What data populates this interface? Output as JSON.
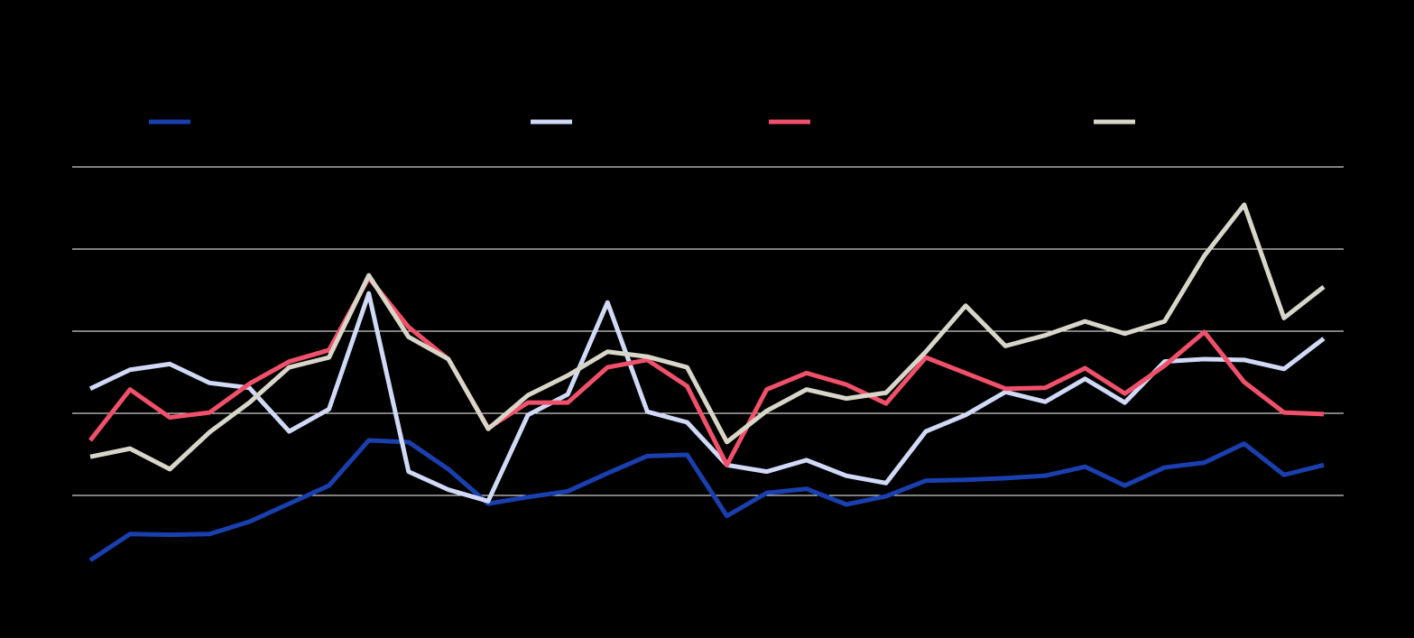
{
  "chart_data": {
    "type": "line",
    "categories": [
      null,
      null,
      null,
      null,
      null,
      null,
      null,
      null,
      null,
      null,
      null,
      null,
      null,
      null,
      null,
      null,
      null,
      null,
      null,
      null,
      null,
      null,
      null,
      null,
      null,
      null,
      null,
      null,
      null,
      null,
      null,
      null
    ],
    "ylim": [
      -1,
      4
    ],
    "yticks": [
      0,
      1,
      2,
      3,
      4
    ],
    "grid": true,
    "series": [
      {
        "color": "#1a3fae",
        "values": [
          -0.79,
          -0.47,
          -0.48,
          -0.47,
          -0.32,
          -0.1,
          0.12,
          0.67,
          0.65,
          0.32,
          -0.1,
          -0.02,
          0.05,
          0.27,
          0.48,
          0.495,
          -0.25,
          0.03,
          0.08,
          -0.11,
          -0.01,
          0.18,
          0.19,
          0.21,
          0.24,
          0.35,
          0.12,
          0.34,
          0.4,
          0.63,
          0.25,
          0.37
        ]
      },
      {
        "color": "#d0d9f5",
        "values": [
          1.3,
          1.53,
          1.6,
          1.37,
          1.31,
          0.78,
          1.05,
          2.46,
          0.29,
          0.07,
          -0.07,
          0.98,
          1.23,
          2.35,
          1.02,
          0.89,
          0.37,
          0.29,
          0.43,
          0.24,
          0.15,
          0.78,
          0.98,
          1.26,
          1.14,
          1.42,
          1.13,
          1.63,
          1.66,
          1.65,
          1.54,
          1.91
        ]
      },
      {
        "color": "#f0506a",
        "values": [
          0.67,
          1.29,
          0.95,
          1.01,
          1.36,
          1.63,
          1.77,
          2.65,
          2.05,
          1.66,
          0.82,
          1.13,
          1.13,
          1.56,
          1.65,
          1.33,
          0.37,
          1.29,
          1.49,
          1.35,
          1.12,
          1.68,
          1.49,
          1.3,
          1.31,
          1.55,
          1.24,
          1.58,
          1.99,
          1.38,
          1.01,
          0.99
        ]
      },
      {
        "color": "#d8d6c8",
        "values": [
          0.47,
          0.57,
          0.32,
          0.77,
          1.13,
          1.56,
          1.68,
          2.68,
          1.93,
          1.66,
          0.81,
          1.22,
          1.46,
          1.75,
          1.69,
          1.56,
          0.65,
          1.03,
          1.29,
          1.18,
          1.25,
          1.75,
          2.31,
          1.82,
          1.95,
          2.12,
          1.97,
          2.12,
          2.92,
          3.54,
          2.16,
          2.54
        ]
      }
    ]
  }
}
